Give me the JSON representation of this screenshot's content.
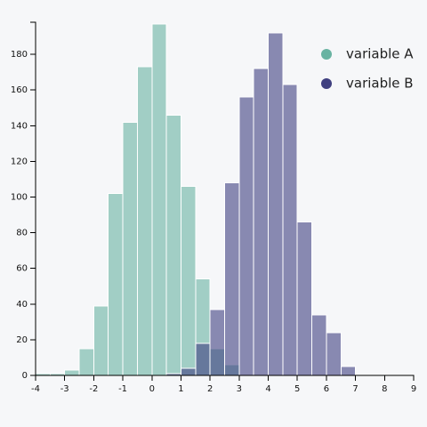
{
  "colors": {
    "background": "#f6f7f9",
    "series_a": "#69b3a2",
    "series_b": "#404080"
  },
  "chart_data": {
    "type": "bar",
    "subtype": "overlapping-histogram",
    "title": "",
    "xlabel": "",
    "ylabel": "",
    "xlim": [
      -4,
      9
    ],
    "ylim": [
      0,
      198
    ],
    "bin_width": 0.5,
    "x_ticks": [
      -4,
      -3,
      -2,
      -1,
      0,
      1,
      2,
      3,
      4,
      5,
      6,
      7,
      8,
      9
    ],
    "y_ticks": [
      0,
      20,
      40,
      60,
      80,
      100,
      120,
      140,
      160,
      180
    ],
    "legend_position": "top-right",
    "grid": false,
    "opacity": 0.6,
    "series": [
      {
        "name": "variable A",
        "color": "#69b3a2",
        "bins": [
          {
            "x0": -4.0,
            "x1": -3.5,
            "count": 1
          },
          {
            "x0": -3.5,
            "x1": -3.0,
            "count": 1
          },
          {
            "x0": -3.0,
            "x1": -2.5,
            "count": 3
          },
          {
            "x0": -2.5,
            "x1": -2.0,
            "count": 15
          },
          {
            "x0": -2.0,
            "x1": -1.5,
            "count": 39
          },
          {
            "x0": -1.5,
            "x1": -1.0,
            "count": 102
          },
          {
            "x0": -1.0,
            "x1": -0.5,
            "count": 142
          },
          {
            "x0": -0.5,
            "x1": 0.0,
            "count": 173
          },
          {
            "x0": 0.0,
            "x1": 0.5,
            "count": 197
          },
          {
            "x0": 0.5,
            "x1": 1.0,
            "count": 146
          },
          {
            "x0": 1.0,
            "x1": 1.5,
            "count": 106
          },
          {
            "x0": 1.5,
            "x1": 2.0,
            "count": 54
          },
          {
            "x0": 2.0,
            "x1": 2.5,
            "count": 15
          },
          {
            "x0": 2.5,
            "x1": 3.0,
            "count": 6
          }
        ]
      },
      {
        "name": "variable B",
        "color": "#404080",
        "bins": [
          {
            "x0": 0.5,
            "x1": 1.0,
            "count": 1
          },
          {
            "x0": 1.0,
            "x1": 1.5,
            "count": 4
          },
          {
            "x0": 1.5,
            "x1": 2.0,
            "count": 18
          },
          {
            "x0": 2.0,
            "x1": 2.5,
            "count": 37
          },
          {
            "x0": 2.5,
            "x1": 3.0,
            "count": 108
          },
          {
            "x0": 3.0,
            "x1": 3.5,
            "count": 156
          },
          {
            "x0": 3.5,
            "x1": 4.0,
            "count": 172
          },
          {
            "x0": 4.0,
            "x1": 4.5,
            "count": 192
          },
          {
            "x0": 4.5,
            "x1": 5.0,
            "count": 163
          },
          {
            "x0": 5.0,
            "x1": 5.5,
            "count": 86
          },
          {
            "x0": 5.5,
            "x1": 6.0,
            "count": 34
          },
          {
            "x0": 6.0,
            "x1": 6.5,
            "count": 24
          },
          {
            "x0": 6.5,
            "x1": 7.0,
            "count": 5
          }
        ]
      }
    ]
  }
}
